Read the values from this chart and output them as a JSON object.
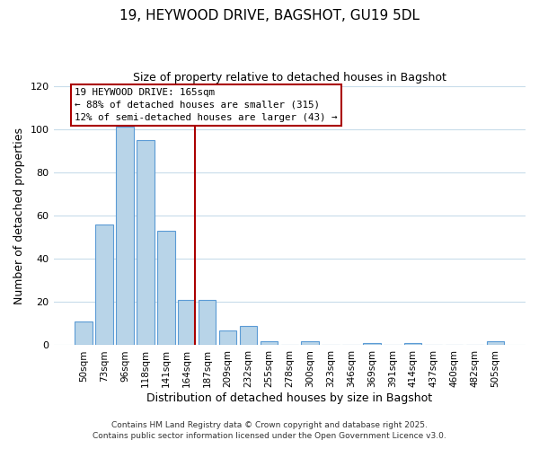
{
  "title": "19, HEYWOOD DRIVE, BAGSHOT, GU19 5DL",
  "subtitle": "Size of property relative to detached houses in Bagshot",
  "xlabel": "Distribution of detached houses by size in Bagshot",
  "ylabel": "Number of detached properties",
  "bar_labels": [
    "50sqm",
    "73sqm",
    "96sqm",
    "118sqm",
    "141sqm",
    "164sqm",
    "187sqm",
    "209sqm",
    "232sqm",
    "255sqm",
    "278sqm",
    "300sqm",
    "323sqm",
    "346sqm",
    "369sqm",
    "391sqm",
    "414sqm",
    "437sqm",
    "460sqm",
    "482sqm",
    "505sqm"
  ],
  "bar_values": [
    11,
    56,
    101,
    95,
    53,
    21,
    21,
    7,
    9,
    2,
    0,
    2,
    0,
    0,
    1,
    0,
    1,
    0,
    0,
    0,
    2
  ],
  "bar_color": "#b8d4e8",
  "bar_edge_color": "#5b9bd5",
  "annotation_line_x_label": "164sqm",
  "annotation_line_color": "#aa0000",
  "annotation_text_line1": "19 HEYWOOD DRIVE: 165sqm",
  "annotation_text_line2": "← 88% of detached houses are smaller (315)",
  "annotation_text_line3": "12% of semi-detached houses are larger (43) →",
  "annotation_box_edge_color": "#aa0000",
  "ylim": [
    0,
    120
  ],
  "yticks": [
    0,
    20,
    40,
    60,
    80,
    100,
    120
  ],
  "footer_line1": "Contains HM Land Registry data © Crown copyright and database right 2025.",
  "footer_line2": "Contains public sector information licensed under the Open Government Licence v3.0.",
  "background_color": "#ffffff",
  "grid_color": "#c8dcea"
}
